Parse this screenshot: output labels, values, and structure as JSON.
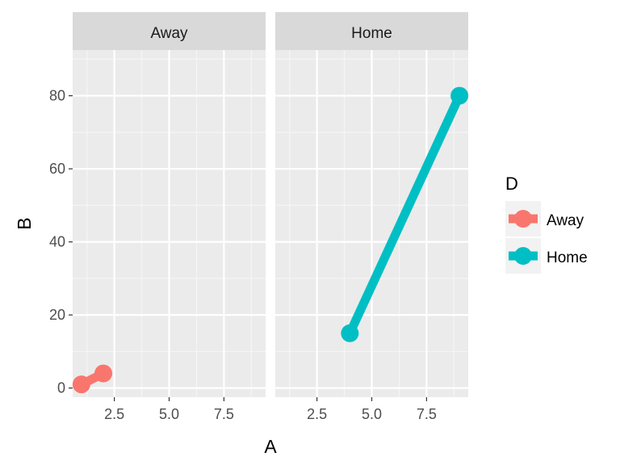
{
  "chart_data": {
    "type": "line",
    "facet_variable": "D",
    "x_label": "A",
    "y_label": "B",
    "xlim": [
      0.6,
      9.4
    ],
    "ylim": [
      -2.5,
      92.5
    ],
    "x_ticks": [
      2.5,
      5.0,
      7.5
    ],
    "x_tick_labels": [
      "2.5",
      "5.0",
      "7.5"
    ],
    "y_ticks": [
      0,
      20,
      40,
      60,
      80
    ],
    "y_tick_labels": [
      "0",
      "20",
      "40",
      "60",
      "80"
    ],
    "grid": true,
    "legend": {
      "title": "D",
      "position": "right",
      "entries": [
        {
          "label": "Away",
          "color": "#F8766D"
        },
        {
          "label": "Home",
          "color": "#00BFC4"
        }
      ]
    },
    "panels": [
      {
        "strip": "Away",
        "series": [
          {
            "name": "Away",
            "color": "#F8766D",
            "x": [
              1,
              2
            ],
            "y": [
              1,
              4
            ]
          }
        ]
      },
      {
        "strip": "Home",
        "series": [
          {
            "name": "Home",
            "color": "#00BFC4",
            "x": [
              4,
              9
            ],
            "y": [
              15,
              80
            ]
          }
        ]
      }
    ]
  }
}
